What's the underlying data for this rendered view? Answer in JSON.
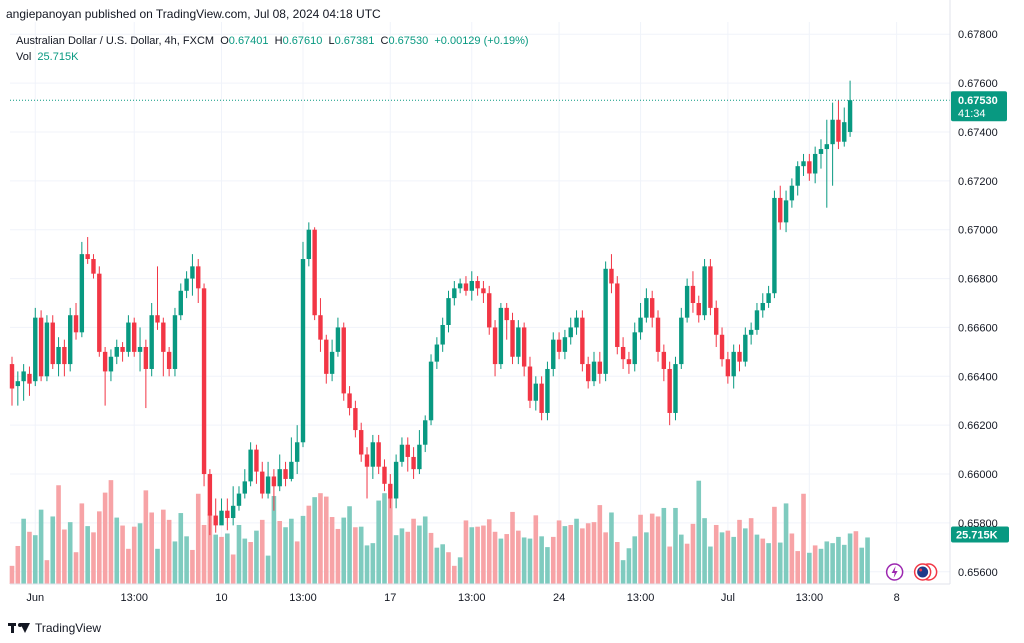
{
  "publisher_line": "angiepanoyan published on TradingView.com, Jul 08, 2024 04:18 UTC",
  "footer": {
    "brand": "TradingView"
  },
  "legend": {
    "symbol": "Australian Dollar / U.S. Dollar, 4h, FXCM",
    "o_label": "O",
    "o_value": "0.67401",
    "h_label": "H",
    "h_value": "0.67610",
    "l_label": "L",
    "l_value": "0.67381",
    "c_label": "C",
    "c_value": "0.67530",
    "change": "+0.00129 (+0.19%)",
    "vol_label": "Vol",
    "vol_value": "25.715K"
  },
  "price_tag": {
    "price": "0.67530",
    "countdown": "41:34"
  },
  "volume_tag": "25.715K",
  "colors": {
    "up": "#089981",
    "down": "#f23645",
    "vol_up": "#7fcbbf",
    "vol_down": "#f7a3a6",
    "grid": "#f0f3fa"
  },
  "chart_data": {
    "type": "candlestick",
    "ylim": [
      0.6555,
      0.6785
    ],
    "y_ticks": [
      "0.67800",
      "0.67600",
      "0.67400",
      "0.67200",
      "0.67000",
      "0.66800",
      "0.66600",
      "0.66400",
      "0.66200",
      "0.66000",
      "0.65800",
      "0.65600"
    ],
    "x_ticks": [
      {
        "label": "Jun",
        "index": 4
      },
      {
        "label": "13:00",
        "index": 21
      },
      {
        "label": "10",
        "index": 36
      },
      {
        "label": "13:00",
        "index": 50
      },
      {
        "label": "17",
        "index": 65
      },
      {
        "label": "13:00",
        "index": 79
      },
      {
        "label": "24",
        "index": 94
      },
      {
        "label": "13:00",
        "index": 108
      },
      {
        "label": "Jul",
        "index": 123
      },
      {
        "label": "13:00",
        "index": 137
      },
      {
        "label": "8",
        "index": 152
      }
    ],
    "candles": [
      [
        0.6645,
        0.6635,
        0.6648,
        0.6628
      ],
      [
        0.6636,
        0.6638,
        0.6642,
        0.6628
      ],
      [
        0.6638,
        0.6642,
        0.6645,
        0.663
      ],
      [
        0.6641,
        0.6637,
        0.6644,
        0.6632
      ],
      [
        0.6638,
        0.6664,
        0.6668,
        0.6636
      ],
      [
        0.6664,
        0.664,
        0.6667,
        0.6638
      ],
      [
        0.664,
        0.6662,
        0.6665,
        0.6638
      ],
      [
        0.6662,
        0.6645,
        0.6665,
        0.6643
      ],
      [
        0.6645,
        0.6652,
        0.6656,
        0.664
      ],
      [
        0.6652,
        0.6645,
        0.6655,
        0.664
      ],
      [
        0.6645,
        0.6665,
        0.6668,
        0.6642
      ],
      [
        0.6665,
        0.6658,
        0.667,
        0.6655
      ],
      [
        0.6658,
        0.669,
        0.6695,
        0.6656
      ],
      [
        0.669,
        0.6688,
        0.6697,
        0.6686
      ],
      [
        0.6688,
        0.6682,
        0.669,
        0.668
      ],
      [
        0.6682,
        0.665,
        0.6685,
        0.6648
      ],
      [
        0.665,
        0.6642,
        0.6652,
        0.6628
      ],
      [
        0.6642,
        0.6648,
        0.6651,
        0.6638
      ],
      [
        0.6648,
        0.6652,
        0.6655,
        0.6645
      ],
      [
        0.6652,
        0.665,
        0.6654,
        0.6646
      ],
      [
        0.665,
        0.6662,
        0.6665,
        0.6648
      ],
      [
        0.6662,
        0.665,
        0.6664,
        0.6648
      ],
      [
        0.665,
        0.6652,
        0.666,
        0.6642
      ],
      [
        0.6652,
        0.6643,
        0.6655,
        0.6627
      ],
      [
        0.6643,
        0.6665,
        0.667,
        0.664
      ],
      [
        0.6665,
        0.6662,
        0.6685,
        0.6659
      ],
      [
        0.6662,
        0.665,
        0.6664,
        0.664
      ],
      [
        0.665,
        0.6643,
        0.6652,
        0.664
      ],
      [
        0.6643,
        0.6665,
        0.6668,
        0.664
      ],
      [
        0.6665,
        0.6675,
        0.6678,
        0.6663
      ],
      [
        0.6675,
        0.668,
        0.6683,
        0.6672
      ],
      [
        0.668,
        0.6685,
        0.669,
        0.6673
      ],
      [
        0.6685,
        0.6676,
        0.6688,
        0.667
      ],
      [
        0.6676,
        0.66,
        0.6678,
        0.6595
      ],
      [
        0.66,
        0.6583,
        0.6602,
        0.6575
      ],
      [
        0.6583,
        0.6579,
        0.659,
        0.6576
      ],
      [
        0.6579,
        0.6585,
        0.659,
        0.658
      ],
      [
        0.6585,
        0.6582,
        0.659,
        0.6577
      ],
      [
        0.6582,
        0.6587,
        0.6595,
        0.6579
      ],
      [
        0.6587,
        0.6592,
        0.6595,
        0.6585
      ],
      [
        0.6592,
        0.6597,
        0.6602,
        0.659
      ],
      [
        0.6597,
        0.661,
        0.6613,
        0.6595
      ],
      [
        0.661,
        0.6601,
        0.6612,
        0.6596
      ],
      [
        0.6601,
        0.6592,
        0.6605,
        0.659
      ],
      [
        0.6592,
        0.6599,
        0.6605,
        0.659
      ],
      [
        0.6599,
        0.6595,
        0.6602,
        0.6585
      ],
      [
        0.6595,
        0.6602,
        0.6608,
        0.6593
      ],
      [
        0.6602,
        0.6598,
        0.6605,
        0.6595
      ],
      [
        0.6598,
        0.6605,
        0.6615,
        0.6597
      ],
      [
        0.6605,
        0.6613,
        0.662,
        0.66
      ],
      [
        0.6613,
        0.6688,
        0.6695,
        0.6611
      ],
      [
        0.6688,
        0.67,
        0.6703,
        0.6685
      ],
      [
        0.67,
        0.6665,
        0.6701,
        0.6663
      ],
      [
        0.6665,
        0.6655,
        0.6672,
        0.665
      ],
      [
        0.6655,
        0.6641,
        0.6657,
        0.6637
      ],
      [
        0.6641,
        0.665,
        0.6655,
        0.6638
      ],
      [
        0.665,
        0.666,
        0.6664,
        0.6648
      ],
      [
        0.666,
        0.6633,
        0.6662,
        0.663
      ],
      [
        0.6633,
        0.6627,
        0.6636,
        0.6624
      ],
      [
        0.6627,
        0.6618,
        0.663,
        0.6615
      ],
      [
        0.6618,
        0.6608,
        0.6621,
        0.6605
      ],
      [
        0.6608,
        0.6603,
        0.6611,
        0.659
      ],
      [
        0.6603,
        0.6613,
        0.6616,
        0.6598
      ],
      [
        0.6613,
        0.6603,
        0.6616,
        0.66
      ],
      [
        0.6603,
        0.6596,
        0.6606,
        0.6593
      ],
      [
        0.6596,
        0.659,
        0.66,
        0.6586
      ],
      [
        0.659,
        0.6605,
        0.6608,
        0.6586
      ],
      [
        0.6605,
        0.6612,
        0.6615,
        0.6603
      ],
      [
        0.6612,
        0.6607,
        0.6615,
        0.6601
      ],
      [
        0.6607,
        0.6602,
        0.6611,
        0.6598
      ],
      [
        0.6602,
        0.6612,
        0.6618,
        0.66
      ],
      [
        0.6612,
        0.6622,
        0.6624,
        0.6609
      ],
      [
        0.6622,
        0.6646,
        0.6649,
        0.662
      ],
      [
        0.6646,
        0.6653,
        0.6656,
        0.6643
      ],
      [
        0.6653,
        0.6661,
        0.6664,
        0.665
      ],
      [
        0.6661,
        0.6672,
        0.6675,
        0.6658
      ],
      [
        0.6672,
        0.6676,
        0.6679,
        0.6669
      ],
      [
        0.6676,
        0.6678,
        0.668,
        0.6674
      ],
      [
        0.6678,
        0.6675,
        0.6681,
        0.6673
      ],
      [
        0.6675,
        0.6679,
        0.6683,
        0.6671
      ],
      [
        0.6679,
        0.6676,
        0.6681,
        0.6673
      ],
      [
        0.6676,
        0.6674,
        0.6679,
        0.667
      ],
      [
        0.6674,
        0.666,
        0.6677,
        0.6657
      ],
      [
        0.666,
        0.6645,
        0.6663,
        0.664
      ],
      [
        0.6645,
        0.6668,
        0.667,
        0.6643
      ],
      [
        0.6668,
        0.6663,
        0.667,
        0.6655
      ],
      [
        0.6663,
        0.6648,
        0.6666,
        0.6645
      ],
      [
        0.6648,
        0.666,
        0.6663,
        0.6645
      ],
      [
        0.666,
        0.6644,
        0.6662,
        0.664
      ],
      [
        0.6644,
        0.663,
        0.6648,
        0.6627
      ],
      [
        0.663,
        0.6637,
        0.664,
        0.6626
      ],
      [
        0.6637,
        0.6625,
        0.664,
        0.6622
      ],
      [
        0.6625,
        0.6643,
        0.6646,
        0.6622
      ],
      [
        0.6643,
        0.6655,
        0.6658,
        0.664
      ],
      [
        0.6655,
        0.665,
        0.6658,
        0.6647
      ],
      [
        0.665,
        0.6656,
        0.6659,
        0.6647
      ],
      [
        0.6656,
        0.666,
        0.6664,
        0.6653
      ],
      [
        0.666,
        0.6664,
        0.6667,
        0.6657
      ],
      [
        0.6664,
        0.6645,
        0.6667,
        0.6642
      ],
      [
        0.6645,
        0.6638,
        0.6648,
        0.6635
      ],
      [
        0.6638,
        0.6646,
        0.665,
        0.6636
      ],
      [
        0.6646,
        0.6641,
        0.665,
        0.6637
      ],
      [
        0.6641,
        0.6684,
        0.6687,
        0.6638
      ],
      [
        0.6684,
        0.6678,
        0.669,
        0.6674
      ],
      [
        0.6678,
        0.6652,
        0.6681,
        0.6649
      ],
      [
        0.6652,
        0.6647,
        0.6656,
        0.6643
      ],
      [
        0.6647,
        0.6645,
        0.665,
        0.6641
      ],
      [
        0.6645,
        0.6658,
        0.6662,
        0.6642
      ],
      [
        0.6658,
        0.6664,
        0.667,
        0.6655
      ],
      [
        0.6664,
        0.6672,
        0.6676,
        0.6662
      ],
      [
        0.6672,
        0.6664,
        0.6675,
        0.666
      ],
      [
        0.6664,
        0.665,
        0.6667,
        0.6646
      ],
      [
        0.665,
        0.6643,
        0.6653,
        0.6638
      ],
      [
        0.6643,
        0.6625,
        0.6646,
        0.662
      ],
      [
        0.6625,
        0.6645,
        0.6648,
        0.6622
      ],
      [
        0.6645,
        0.6664,
        0.6668,
        0.6643
      ],
      [
        0.6664,
        0.6677,
        0.668,
        0.6662
      ],
      [
        0.6677,
        0.667,
        0.6683,
        0.6666
      ],
      [
        0.667,
        0.6665,
        0.6673,
        0.6662
      ],
      [
        0.6665,
        0.6685,
        0.6688,
        0.6663
      ],
      [
        0.6685,
        0.6668,
        0.6688,
        0.6665
      ],
      [
        0.6668,
        0.6657,
        0.6671,
        0.6652
      ],
      [
        0.6657,
        0.6647,
        0.666,
        0.6644
      ],
      [
        0.6647,
        0.664,
        0.665,
        0.6637
      ],
      [
        0.664,
        0.665,
        0.6653,
        0.6635
      ],
      [
        0.665,
        0.6646,
        0.6653,
        0.6642
      ],
      [
        0.6646,
        0.6657,
        0.666,
        0.6644
      ],
      [
        0.6657,
        0.6659,
        0.6662,
        0.6653
      ],
      [
        0.6659,
        0.6667,
        0.667,
        0.6657
      ],
      [
        0.6667,
        0.667,
        0.6674,
        0.6664
      ],
      [
        0.667,
        0.6674,
        0.6677,
        0.6668
      ],
      [
        0.6674,
        0.6713,
        0.6716,
        0.6672
      ],
      [
        0.6713,
        0.6703,
        0.6718,
        0.67
      ],
      [
        0.6703,
        0.6712,
        0.6716,
        0.6699
      ],
      [
        0.6712,
        0.6718,
        0.6721,
        0.6709
      ],
      [
        0.6718,
        0.6726,
        0.6728,
        0.6714
      ],
      [
        0.6726,
        0.6728,
        0.6731,
        0.6722
      ],
      [
        0.6728,
        0.6723,
        0.6731,
        0.672
      ],
      [
        0.6723,
        0.6731,
        0.6734,
        0.6719
      ],
      [
        0.6731,
        0.6733,
        0.6737,
        0.6725
      ],
      [
        0.6733,
        0.6735,
        0.6745,
        0.6709
      ],
      [
        0.6735,
        0.6745,
        0.6752,
        0.6718
      ],
      [
        0.6745,
        0.6736,
        0.6753,
        0.6733
      ],
      [
        0.6736,
        0.6744,
        0.675,
        0.6734
      ],
      [
        0.674,
        0.6753,
        0.6761,
        0.6738
      ]
    ],
    "volumes": [
      [
        3.2,
        0
      ],
      [
        6.7,
        0
      ],
      [
        11.5,
        1
      ],
      [
        9.2,
        0
      ],
      [
        8.6,
        1
      ],
      [
        13.1,
        1
      ],
      [
        4.2,
        0
      ],
      [
        11.9,
        1
      ],
      [
        17.4,
        0
      ],
      [
        9.6,
        0
      ],
      [
        10.9,
        1
      ],
      [
        5.6,
        0
      ],
      [
        14.2,
        0
      ],
      [
        10.2,
        1
      ],
      [
        9.1,
        0
      ],
      [
        12.8,
        0
      ],
      [
        16.1,
        0
      ],
      [
        18.3,
        0
      ],
      [
        11.7,
        1
      ],
      [
        10.3,
        0
      ],
      [
        6.2,
        0
      ],
      [
        10.1,
        0
      ],
      [
        10.7,
        1
      ],
      [
        16.5,
        0
      ],
      [
        12.6,
        0
      ],
      [
        6.2,
        1
      ],
      [
        13.1,
        0
      ],
      [
        11.3,
        0
      ],
      [
        7.5,
        1
      ],
      [
        12.5,
        1
      ],
      [
        8.4,
        1
      ],
      [
        6.0,
        0
      ],
      [
        15.9,
        0
      ],
      [
        10.4,
        0
      ],
      [
        12.3,
        0
      ],
      [
        8.7,
        1
      ],
      [
        8.3,
        0
      ],
      [
        8.9,
        1
      ],
      [
        5.2,
        0
      ],
      [
        10.4,
        1
      ],
      [
        8.0,
        1
      ],
      [
        7.4,
        0
      ],
      [
        9.4,
        1
      ],
      [
        11.3,
        0
      ],
      [
        5.0,
        1
      ],
      [
        15.5,
        1
      ],
      [
        11.1,
        0
      ],
      [
        10.0,
        1
      ],
      [
        11.5,
        1
      ],
      [
        7.5,
        0
      ],
      [
        12.0,
        1
      ],
      [
        13.8,
        0
      ],
      [
        15.3,
        1
      ],
      [
        16.0,
        0
      ],
      [
        15.4,
        0
      ],
      [
        11.8,
        0
      ],
      [
        9.7,
        0
      ],
      [
        11.7,
        1
      ],
      [
        13.7,
        1
      ],
      [
        10.0,
        0
      ],
      [
        10.1,
        1
      ],
      [
        6.8,
        1
      ],
      [
        7.2,
        1
      ],
      [
        14.7,
        1
      ],
      [
        16.0,
        1
      ],
      [
        15.2,
        0
      ],
      [
        8.6,
        1
      ],
      [
        9.8,
        1
      ],
      [
        9.2,
        0
      ],
      [
        11.5,
        0
      ],
      [
        10.3,
        1
      ],
      [
        11.9,
        1
      ],
      [
        9.0,
        0
      ],
      [
        6.4,
        1
      ],
      [
        7.0,
        1
      ],
      [
        5.6,
        0
      ],
      [
        3.2,
        0
      ],
      [
        4.7,
        1
      ],
      [
        11.2,
        0
      ],
      [
        10.0,
        1
      ],
      [
        10.1,
        0
      ],
      [
        10.3,
        0
      ],
      [
        11.4,
        0
      ],
      [
        9.2,
        0
      ],
      [
        8.0,
        1
      ],
      [
        8.8,
        0
      ],
      [
        12.7,
        0
      ],
      [
        9.4,
        0
      ],
      [
        8.2,
        1
      ],
      [
        8.0,
        1
      ],
      [
        12.1,
        0
      ],
      [
        8.4,
        1
      ],
      [
        6.5,
        1
      ],
      [
        8.3,
        0
      ],
      [
        11.2,
        0
      ],
      [
        10.2,
        1
      ],
      [
        10.4,
        0
      ],
      [
        11.5,
        1
      ],
      [
        9.8,
        0
      ],
      [
        10.7,
        0
      ],
      [
        10.9,
        0
      ],
      [
        13.9,
        0
      ],
      [
        9.1,
        0
      ],
      [
        12.6,
        1
      ],
      [
        7.4,
        0
      ],
      [
        4.2,
        1
      ],
      [
        6.3,
        1
      ],
      [
        8.4,
        1
      ],
      [
        12.2,
        0
      ],
      [
        9.1,
        1
      ],
      [
        12.4,
        0
      ],
      [
        11.9,
        0
      ],
      [
        13.4,
        1
      ],
      [
        6.6,
        0
      ],
      [
        13.4,
        1
      ],
      [
        8.7,
        1
      ],
      [
        7.1,
        0
      ],
      [
        10.6,
        0
      ],
      [
        18.2,
        1
      ],
      [
        11.6,
        1
      ],
      [
        6.6,
        1
      ],
      [
        10.4,
        0
      ],
      [
        9.1,
        1
      ],
      [
        9.4,
        0
      ],
      [
        8.3,
        1
      ],
      [
        11.3,
        0
      ],
      [
        9.8,
        1
      ],
      [
        11.6,
        0
      ],
      [
        8.7,
        1
      ],
      [
        8.0,
        0
      ],
      [
        7.2,
        1
      ],
      [
        13.6,
        0
      ],
      [
        7.3,
        1
      ],
      [
        14.2,
        1
      ],
      [
        8.9,
        0
      ],
      [
        5.8,
        0
      ],
      [
        15.9,
        0
      ],
      [
        5.5,
        1
      ],
      [
        6.8,
        0
      ],
      [
        6.2,
        1
      ],
      [
        7.5,
        1
      ],
      [
        7.2,
        1
      ],
      [
        8.3,
        1
      ],
      [
        6.9,
        1
      ],
      [
        8.9,
        1
      ],
      [
        9.3,
        0
      ],
      [
        6.4,
        1
      ],
      [
        8.2,
        1
      ]
    ]
  }
}
